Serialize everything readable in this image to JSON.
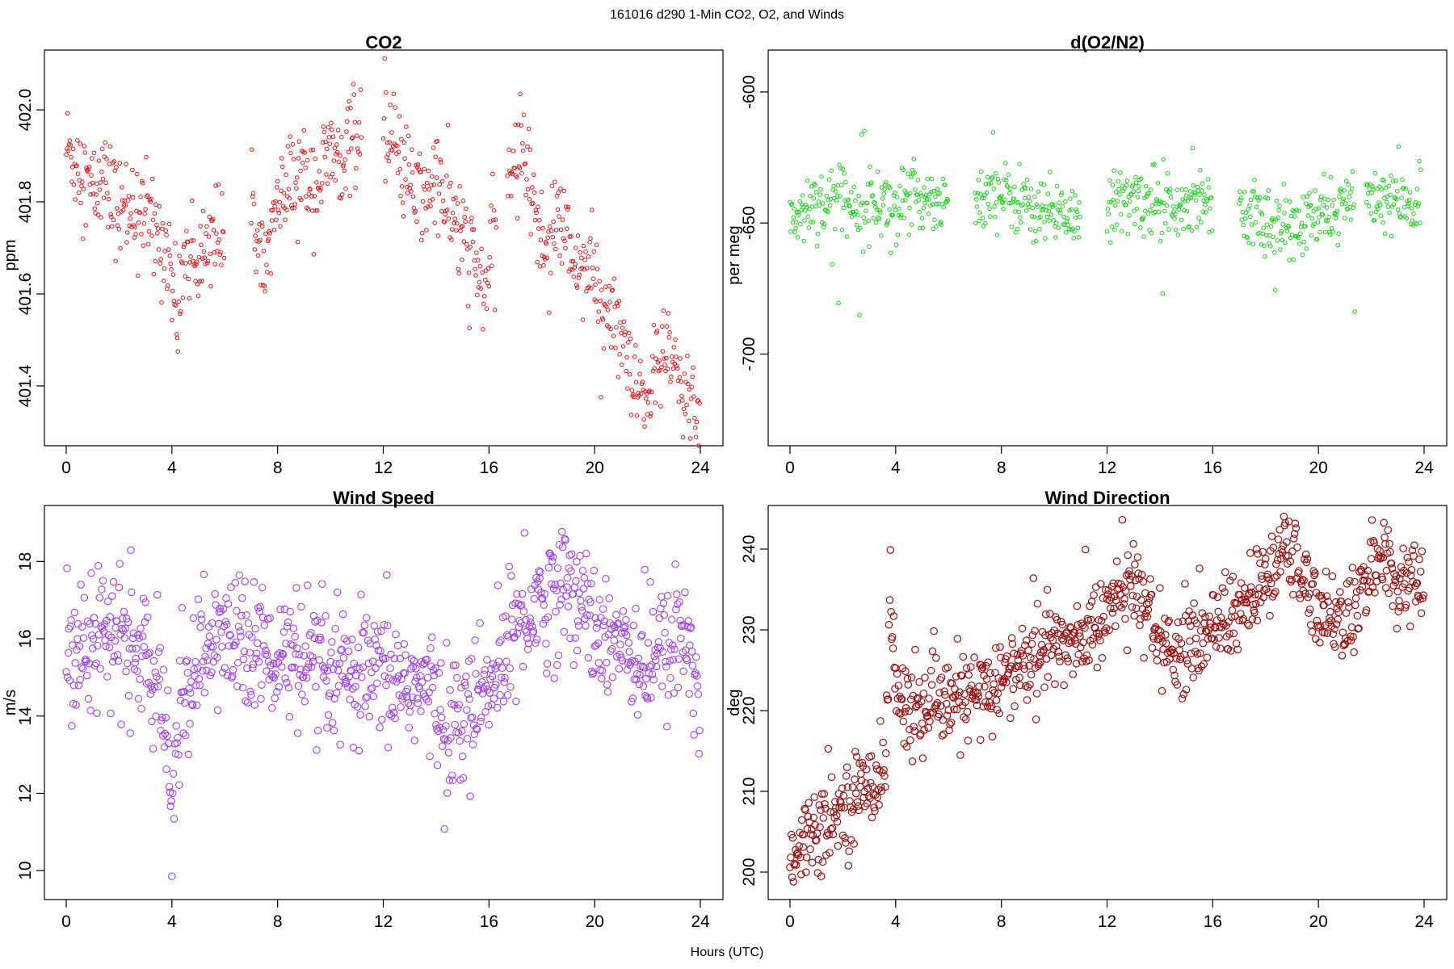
{
  "figure_title": "161016   d290   1-Min CO2, O2, and Winds",
  "xlabel": "Hours (UTC)",
  "chart_data": [
    {
      "type": "scatter",
      "title": "CO2",
      "ylabel": "ppm",
      "color": "#e8141e",
      "xlim": [
        0,
        24
      ],
      "ylim": [
        401.27,
        402.13
      ],
      "xticks": [
        "0",
        "4",
        "8",
        "12",
        "16",
        "20",
        "24"
      ],
      "yticks": [
        "401.4",
        "401.6",
        "401.8",
        "402.0"
      ],
      "segments": [
        [
          0.0,
          401.92
        ],
        [
          0.5,
          401.88
        ],
        [
          1.0,
          401.82
        ],
        [
          1.5,
          401.84
        ],
        [
          2.0,
          401.78
        ],
        [
          2.5,
          401.8
        ],
        [
          3.0,
          401.77
        ],
        [
          3.5,
          401.72
        ],
        [
          3.9,
          401.7
        ],
        [
          4.0,
          401.62
        ],
        [
          4.2,
          401.54
        ],
        [
          4.5,
          401.7
        ],
        [
          5.0,
          401.67
        ],
        [
          5.5,
          401.74
        ],
        [
          6.0,
          401.72
        ],
        [
          null,
          null
        ],
        [
          7.0,
          401.75
        ],
        [
          7.5,
          401.73
        ],
        [
          8.0,
          401.78
        ],
        [
          8.5,
          401.83
        ],
        [
          9.0,
          401.86
        ],
        [
          9.5,
          401.84
        ],
        [
          10.0,
          401.9
        ],
        [
          10.5,
          401.92
        ],
        [
          11.0,
          401.95
        ],
        [
          11.2,
          401.98
        ],
        [
          null,
          null
        ],
        [
          12.0,
          401.93
        ],
        [
          12.5,
          401.9
        ],
        [
          13.0,
          401.84
        ],
        [
          13.5,
          401.8
        ],
        [
          14.0,
          401.85
        ],
        [
          14.5,
          401.78
        ],
        [
          15.0,
          401.72
        ],
        [
          15.5,
          401.66
        ],
        [
          15.8,
          401.6
        ],
        [
          16.0,
          401.66
        ],
        [
          16.3,
          401.73
        ],
        [
          null,
          null
        ],
        [
          16.7,
          401.85
        ],
        [
          17.0,
          401.89
        ],
        [
          17.4,
          401.92
        ],
        [
          17.8,
          401.74
        ],
        [
          18.2,
          401.7
        ],
        [
          18.6,
          401.78
        ],
        [
          19.0,
          401.7
        ],
        [
          19.5,
          401.66
        ],
        [
          20.0,
          401.63
        ],
        [
          20.5,
          401.56
        ],
        [
          21.0,
          401.5
        ],
        [
          21.3,
          401.42
        ],
        [
          21.6,
          401.37
        ],
        [
          22.0,
          401.38
        ],
        [
          22.5,
          401.46
        ],
        [
          23.0,
          401.45
        ],
        [
          23.4,
          401.36
        ],
        [
          23.7,
          401.39
        ],
        [
          24.0,
          401.32
        ]
      ],
      "noise": 0.055,
      "spikes": 0.12
    },
    {
      "type": "scatter",
      "title": "d(O2/N2)",
      "ylabel": "per meg",
      "color": "#1ad21a",
      "xlim": [
        0,
        24
      ],
      "ylim": [
        -735,
        -584
      ],
      "xticks": [
        "0",
        "4",
        "8",
        "12",
        "16",
        "20",
        "24"
      ],
      "yticks": [
        "-700",
        "-650",
        "-600"
      ],
      "segments": [
        [
          0.0,
          -648
        ],
        [
          0.5,
          -646
        ],
        [
          1.0,
          -640
        ],
        [
          1.3,
          -643
        ],
        [
          2.0,
          -641
        ],
        [
          3.0,
          -642
        ],
        [
          4.0,
          -643
        ],
        [
          5.0,
          -640
        ],
        [
          6.0,
          -641
        ],
        [
          null,
          null
        ],
        [
          7.0,
          -641
        ],
        [
          8.0,
          -640
        ],
        [
          9.0,
          -642
        ],
        [
          10.0,
          -646
        ],
        [
          11.0,
          -647
        ],
        [
          null,
          null
        ],
        [
          12.0,
          -645
        ],
        [
          13.0,
          -641
        ],
        [
          14.0,
          -642
        ],
        [
          15.0,
          -641
        ],
        [
          16.0,
          -640
        ],
        [
          null,
          null
        ],
        [
          17.0,
          -645
        ],
        [
          18.0,
          -650
        ],
        [
          19.0,
          -653
        ],
        [
          20.0,
          -648
        ],
        [
          21.0,
          -643
        ],
        [
          21.4,
          -642
        ],
        [
          null,
          null
        ],
        [
          21.8,
          -640
        ],
        [
          22.5,
          -641
        ],
        [
          23.2,
          -643
        ],
        [
          23.9,
          -645
        ]
      ],
      "noise": 6.5,
      "spikes": 40
    },
    {
      "type": "scatter",
      "title": "Wind Speed",
      "ylabel": "m/s",
      "color": "#a040f0",
      "xlim": [
        0,
        24
      ],
      "ylim": [
        9.25,
        19.45
      ],
      "xticks": [
        "0",
        "4",
        "8",
        "12",
        "16",
        "20",
        "24"
      ],
      "yticks": [
        "10",
        "12",
        "14",
        "16",
        "18"
      ],
      "segments": [
        [
          0.0,
          15.6
        ],
        [
          1.0,
          16.3
        ],
        [
          2.0,
          16.0
        ],
        [
          3.0,
          15.6
        ],
        [
          3.5,
          14.5
        ],
        [
          3.9,
          12.5
        ],
        [
          4.0,
          11.0
        ],
        [
          4.3,
          14.5
        ],
        [
          5.0,
          15.4
        ],
        [
          6.0,
          16.1
        ],
        [
          7.0,
          15.9
        ],
        [
          8.0,
          15.5
        ],
        [
          9.0,
          15.4
        ],
        [
          10.0,
          14.8
        ],
        [
          11.0,
          14.9
        ],
        [
          12.0,
          15.0
        ],
        [
          13.0,
          14.9
        ],
        [
          14.0,
          14.4
        ],
        [
          14.5,
          13.6
        ],
        [
          15.0,
          14.1
        ],
        [
          16.0,
          14.5
        ],
        [
          16.5,
          15.6
        ],
        [
          17.0,
          16.4
        ],
        [
          18.0,
          17.0
        ],
        [
          19.0,
          17.3
        ],
        [
          20.0,
          16.4
        ],
        [
          21.0,
          16.0
        ],
        [
          22.0,
          15.4
        ],
        [
          23.0,
          15.8
        ],
        [
          23.6,
          15.9
        ],
        [
          24.0,
          14.0
        ]
      ],
      "noise": 0.85,
      "spikes": 1.6
    },
    {
      "type": "scatter",
      "title": "Wind Direction",
      "ylabel": "deg",
      "color": "#9b1212",
      "xlim": [
        0,
        24
      ],
      "ylim": [
        196.6,
        245.4
      ],
      "xticks": [
        "0",
        "4",
        "8",
        "12",
        "16",
        "20",
        "24"
      ],
      "yticks": [
        "200",
        "210",
        "220",
        "230",
        "240"
      ],
      "segments": [
        [
          0.0,
          202
        ],
        [
          1.0,
          206
        ],
        [
          2.0,
          208
        ],
        [
          3.0,
          211
        ],
        [
          3.6,
          213
        ],
        [
          3.8,
          235
        ],
        [
          4.0,
          222
        ],
        [
          5.0,
          219
        ],
        [
          6.0,
          221
        ],
        [
          7.0,
          222
        ],
        [
          8.0,
          224
        ],
        [
          9.0,
          226
        ],
        [
          10.0,
          228
        ],
        [
          11.0,
          229
        ],
        [
          12.0,
          232
        ],
        [
          13.0,
          236
        ],
        [
          14.0,
          229
        ],
        [
          15.0,
          227
        ],
        [
          16.0,
          231
        ],
        [
          17.0,
          232
        ],
        [
          18.0,
          236
        ],
        [
          18.8,
          240
        ],
        [
          19.5,
          236
        ],
        [
          20.0,
          233
        ],
        [
          21.0,
          231
        ],
        [
          21.5,
          233
        ],
        [
          22.0,
          237
        ],
        [
          22.4,
          240
        ],
        [
          23.0,
          235
        ],
        [
          24.0,
          236
        ]
      ],
      "noise": 2.6,
      "spikes": 8
    }
  ]
}
